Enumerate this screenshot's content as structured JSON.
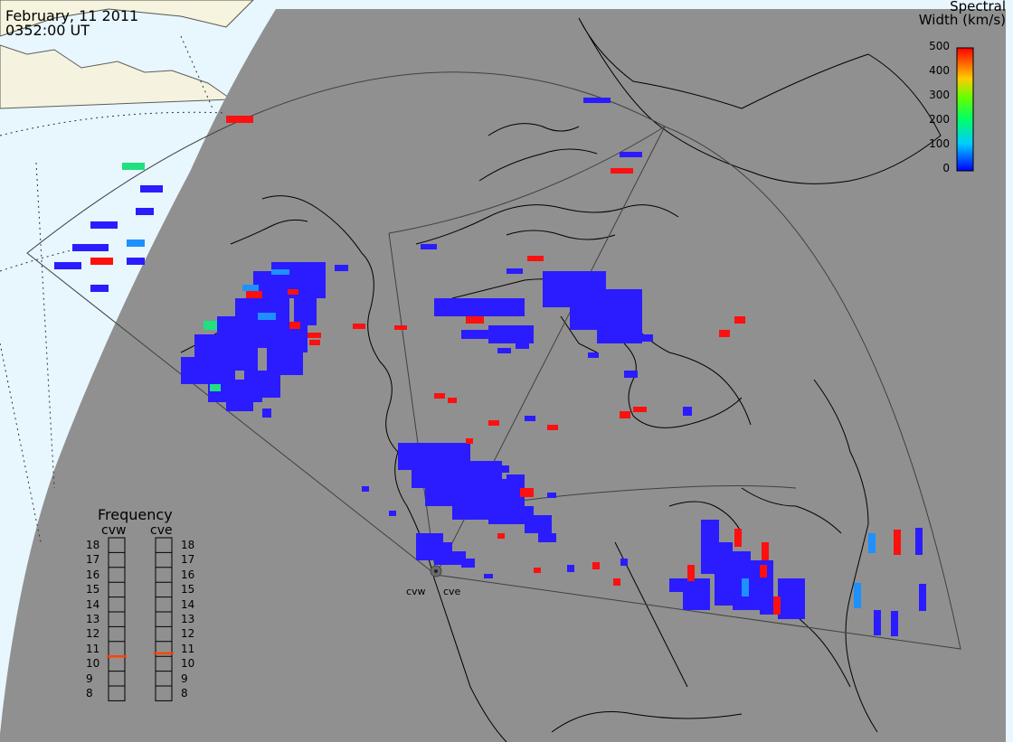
{
  "header": {
    "date": "February, 11 2011",
    "time": "0352:00 UT"
  },
  "colorbar": {
    "title_line1": "Spectral",
    "title_line2": "Width (km/s)",
    "ticks": [
      "500",
      "400",
      "300",
      "200",
      "100",
      "0"
    ],
    "colors": [
      "#0000ff",
      "#00ccff",
      "#00ff66",
      "#66ff00",
      "#ffcc00",
      "#ff0000"
    ]
  },
  "frequency": {
    "title": "Frequency",
    "left_label": "cvw",
    "right_label": "cve",
    "ticks": [
      "18",
      "17",
      "16",
      "15",
      "14",
      "13",
      "12",
      "11",
      "10",
      "9",
      "8"
    ],
    "cvw_mhz": 10.5,
    "cve_mhz": 10.7,
    "marker_color": "#ff4400"
  },
  "stations": [
    "cvw",
    "cve"
  ],
  "map_colors": {
    "night": "#909090",
    "day": "#e8f6fd",
    "land_day": "#f6f3de"
  }
}
